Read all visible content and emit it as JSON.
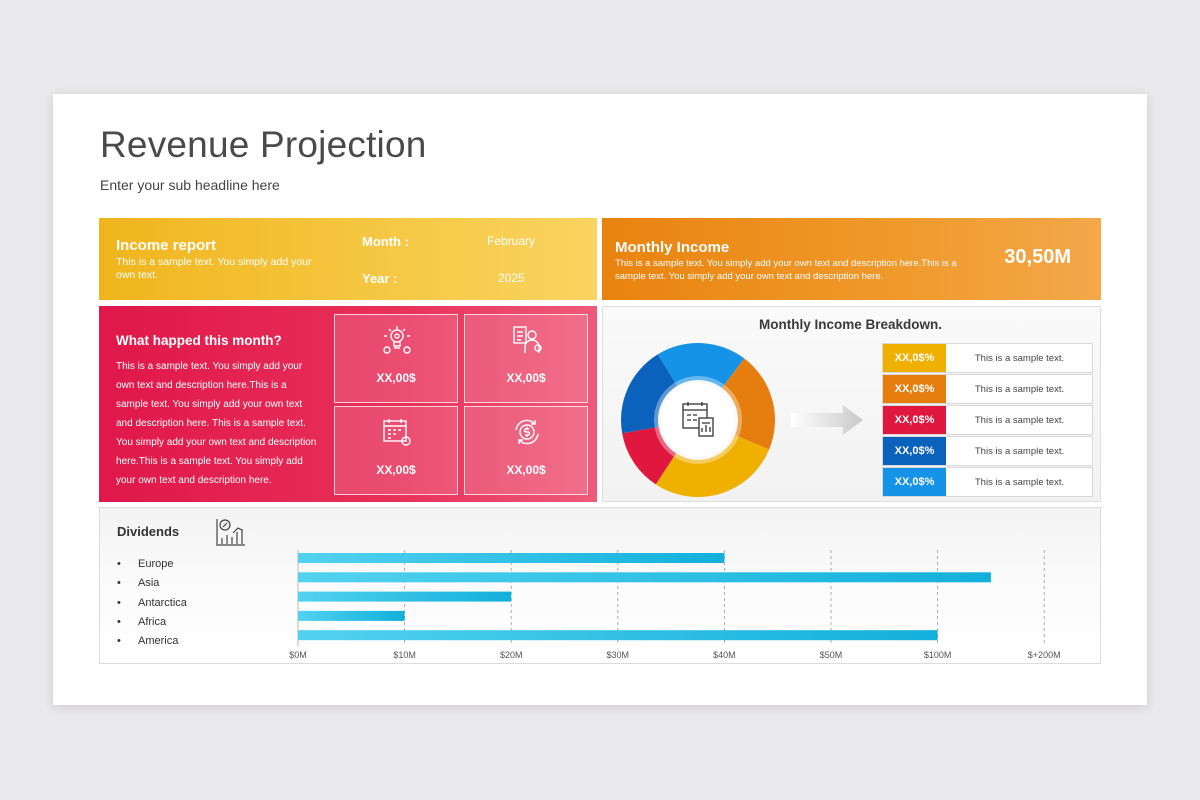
{
  "header": {
    "title": "Revenue Projection",
    "subtitle": "Enter your sub headline here"
  },
  "income_report": {
    "title": "Income report",
    "text": "This is a sample text. You simply add your own text.",
    "month_label": "Month :",
    "month_value": "February",
    "year_label": "Year :",
    "year_value": "2025",
    "color": "#f0b51d"
  },
  "monthly_income": {
    "title": "Monthly Income",
    "text": "This is a sample text. You simply add your own text and description here.This is a sample text. You simply add your own text and description here.",
    "value": "30,50M",
    "color": "#e9830f"
  },
  "what_happened": {
    "title": "What happed this month?",
    "text": "This is a sample text. You simply add your own text and description here.This is a sample text. You simply add your own text and description here. This is a sample text. You simply add your own text and description here.This is a sample text. You simply add your own text and description here.",
    "tiles": [
      {
        "icon": "idea-gear-icon",
        "value": "XX,00$"
      },
      {
        "icon": "businessman-chart-icon",
        "value": "XX,00$"
      },
      {
        "icon": "calendar-settings-icon",
        "value": "XX,00$"
      },
      {
        "icon": "dollar-cycle-icon",
        "value": "XX,00$"
      }
    ],
    "color": "#e0174a"
  },
  "breakdown": {
    "title": "Monthly Income Breakdown.",
    "center_icon": "report-chart-icon",
    "rows": [
      {
        "value": "XX,0$%",
        "text": "This is a sample text.",
        "color": "#f0b000"
      },
      {
        "value": "XX,0$%",
        "text": "This is a sample text.",
        "color": "#e67e0f"
      },
      {
        "value": "XX,0$%",
        "text": "This is a sample text.",
        "color": "#e0173f"
      },
      {
        "value": "XX,0$%",
        "text": "This is a sample text.",
        "color": "#0b62bd"
      },
      {
        "value": "XX,0$%",
        "text": "This is a sample text.",
        "color": "#1593e6"
      }
    ],
    "donut_segments": [
      {
        "color": "#1593e6",
        "share": 0.19
      },
      {
        "color": "#e67e0f",
        "share": 0.21
      },
      {
        "color": "#f0b000",
        "share": 0.28
      },
      {
        "color": "#e0173f",
        "share": 0.13
      },
      {
        "color": "#0b62bd",
        "share": 0.19
      }
    ]
  },
  "dividends": {
    "title": "Dividends",
    "icon": "growth-chart-icon",
    "bar_color": "#17b8df"
  },
  "chart_data": {
    "type": "bar",
    "orientation": "horizontal",
    "title": "Dividends",
    "categories": [
      "Europe",
      "Asia",
      "Antarctica",
      "Africa",
      "America"
    ],
    "tick_labels": [
      "$0M",
      "$10M",
      "$20M",
      "$30M",
      "$40M",
      "$50M",
      "$100M",
      "$+200M"
    ],
    "values_in_tick_units": [
      4.0,
      6.5,
      2.0,
      1.0,
      6.0
    ],
    "grid": "vertical dashed"
  }
}
